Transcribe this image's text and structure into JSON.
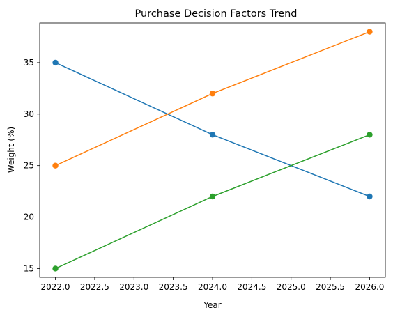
{
  "chart_data": {
    "type": "line",
    "title": "Purchase Decision Factors Trend",
    "xlabel": "Year",
    "ylabel": "Weight (%)",
    "x": [
      2022,
      2024,
      2026
    ],
    "xlim": [
      2021.8,
      2026.2
    ],
    "ylim": [
      14.15,
      38.85
    ],
    "xticks": [
      2022.0,
      2022.5,
      2023.0,
      2023.5,
      2024.0,
      2024.5,
      2025.0,
      2025.5,
      2026.0
    ],
    "xtick_labels": [
      "2022.0",
      "2022.5",
      "2023.0",
      "2023.5",
      "2024.0",
      "2024.5",
      "2025.0",
      "2025.5",
      "2026.0"
    ],
    "yticks": [
      15,
      20,
      25,
      30,
      35
    ],
    "ytick_labels": [
      "15",
      "20",
      "25",
      "30",
      "35"
    ],
    "grid": false,
    "markers": "circle",
    "series": [
      {
        "values": [
          35,
          28,
          22
        ],
        "color": "#1f77b4"
      },
      {
        "values": [
          25,
          32,
          38
        ],
        "color": "#ff7f0e"
      },
      {
        "values": [
          15,
          22,
          28
        ],
        "color": "#2ca02c"
      }
    ]
  }
}
